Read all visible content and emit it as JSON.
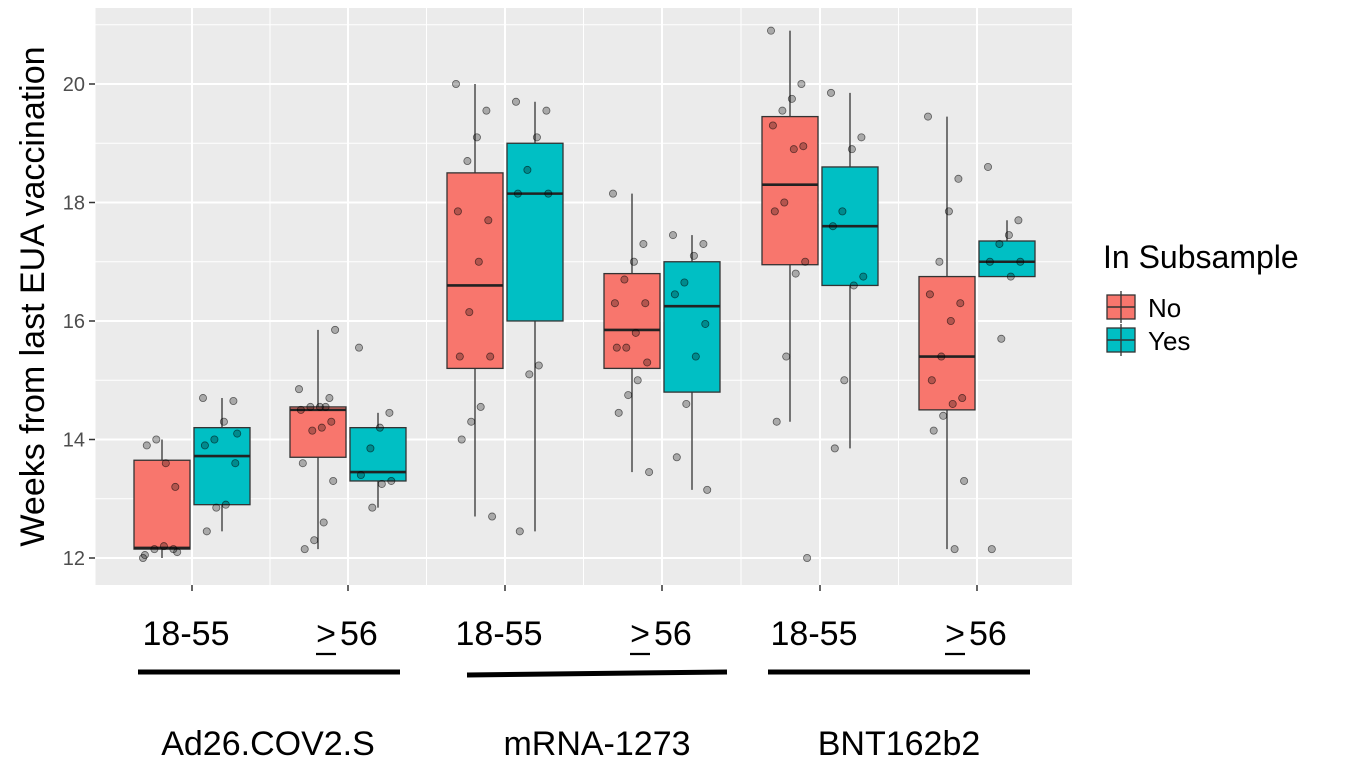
{
  "chart_data": {
    "type": "box",
    "ylabel": "Weeks from last EUA vaccination",
    "ylim": [
      11.6,
      21.0
    ],
    "yticks": [
      12,
      14,
      16,
      18,
      20
    ],
    "grid": true,
    "legend": {
      "title": "In Subsample",
      "placement": "right",
      "entries": [
        {
          "label": "No",
          "color": "#F8766D"
        },
        {
          "label": "Yes",
          "color": "#00BFC4"
        }
      ]
    },
    "vaccines": [
      "Ad26.COV2.S",
      "mRNA-1273",
      "BNT162b2"
    ],
    "age_groups": [
      "18-55",
      "56"
    ],
    "age_group_prefix": ">",
    "series": [
      {
        "name": "No",
        "color": "#F8766D",
        "boxes": [
          {
            "vaccine": "Ad26.COV2.S",
            "age": "18-55",
            "whisker_low": 12.0,
            "q1": 12.15,
            "median": 12.17,
            "q3": 13.65,
            "whisker_high": 14.0
          },
          {
            "vaccine": "Ad26.COV2.S",
            "age": "56",
            "whisker_low": 12.15,
            "q1": 13.7,
            "median": 14.5,
            "q3": 14.55,
            "whisker_high": 15.85
          },
          {
            "vaccine": "mRNA-1273",
            "age": "18-55",
            "whisker_low": 12.7,
            "q1": 15.2,
            "median": 16.6,
            "q3": 18.5,
            "whisker_high": 20.0
          },
          {
            "vaccine": "mRNA-1273",
            "age": "56",
            "whisker_low": 13.45,
            "q1": 15.2,
            "median": 15.85,
            "q3": 16.8,
            "whisker_high": 18.15
          },
          {
            "vaccine": "BNT162b2",
            "age": "18-55",
            "whisker_low": 14.3,
            "q1": 16.95,
            "median": 18.3,
            "q3": 19.45,
            "whisker_high": 20.9
          },
          {
            "vaccine": "BNT162b2",
            "age": "56",
            "whisker_low": 12.15,
            "q1": 14.5,
            "median": 15.4,
            "q3": 16.75,
            "whisker_high": 19.45
          }
        ]
      },
      {
        "name": "Yes",
        "color": "#00BFC4",
        "boxes": [
          {
            "vaccine": "Ad26.COV2.S",
            "age": "18-55",
            "whisker_low": 12.45,
            "q1": 12.9,
            "median": 13.72,
            "q3": 14.2,
            "whisker_high": 14.7
          },
          {
            "vaccine": "Ad26.COV2.S",
            "age": "56",
            "whisker_low": 12.85,
            "q1": 13.3,
            "median": 13.45,
            "q3": 14.2,
            "whisker_high": 14.45
          },
          {
            "vaccine": "mRNA-1273",
            "age": "18-55",
            "whisker_low": 12.45,
            "q1": 16.0,
            "median": 18.15,
            "q3": 19.0,
            "whisker_high": 19.7
          },
          {
            "vaccine": "mRNA-1273",
            "age": "56",
            "whisker_low": 13.15,
            "q1": 14.8,
            "median": 16.25,
            "q3": 17.0,
            "whisker_high": 17.45
          },
          {
            "vaccine": "BNT162b2",
            "age": "18-55",
            "whisker_low": 13.85,
            "q1": 16.6,
            "median": 17.6,
            "q3": 18.6,
            "whisker_high": 19.85
          },
          {
            "vaccine": "BNT162b2",
            "age": "56",
            "whisker_low": 16.75,
            "q1": 16.75,
            "median": 17.0,
            "q3": 17.35,
            "whisker_high": 17.7
          }
        ]
      }
    ],
    "points": [
      {
        "series": "No",
        "vaccine": "Ad26.COV2.S",
        "age": "18-55",
        "y": [
          12.0,
          12.15,
          12.2,
          12.15,
          12.05,
          13.2,
          13.6,
          14.0,
          13.9,
          12.1
        ]
      },
      {
        "series": "Yes",
        "vaccine": "Ad26.COV2.S",
        "age": "18-55",
        "y": [
          14.7,
          14.65,
          14.3,
          14.0,
          13.9,
          13.6,
          12.9,
          12.85,
          12.45,
          14.1
        ]
      },
      {
        "series": "No",
        "vaccine": "Ad26.COV2.S",
        "age": "56",
        "y": [
          14.85,
          14.7,
          14.55,
          14.55,
          14.5,
          14.3,
          14.2,
          14.15,
          13.6,
          13.3,
          12.6,
          12.3,
          12.15,
          15.85,
          14.55
        ]
      },
      {
        "series": "Yes",
        "vaccine": "Ad26.COV2.S",
        "age": "56",
        "y": [
          15.55,
          14.45,
          14.2,
          13.85,
          13.4,
          13.3,
          13.25,
          12.85
        ]
      },
      {
        "series": "No",
        "vaccine": "mRNA-1273",
        "age": "18-55",
        "y": [
          20.0,
          19.55,
          19.1,
          18.7,
          17.85,
          17.7,
          17.0,
          16.15,
          15.4,
          15.4,
          14.55,
          14.3,
          14.0,
          12.7
        ]
      },
      {
        "series": "Yes",
        "vaccine": "mRNA-1273",
        "age": "18-55",
        "y": [
          19.7,
          19.55,
          19.1,
          18.55,
          18.15,
          18.15,
          15.25,
          15.1,
          12.45
        ]
      },
      {
        "series": "No",
        "vaccine": "mRNA-1273",
        "age": "56",
        "y": [
          18.15,
          17.3,
          17.0,
          16.7,
          16.3,
          16.3,
          15.8,
          15.55,
          15.55,
          15.3,
          15.0,
          14.75,
          14.45,
          13.45
        ]
      },
      {
        "series": "Yes",
        "vaccine": "mRNA-1273",
        "age": "56",
        "y": [
          17.45,
          17.3,
          17.1,
          16.65,
          16.45,
          15.95,
          15.4,
          14.6,
          13.7,
          13.15
        ]
      },
      {
        "series": "No",
        "vaccine": "BNT162b2",
        "age": "18-55",
        "y": [
          20.9,
          20.0,
          19.75,
          19.55,
          19.3,
          18.95,
          18.9,
          18.0,
          17.85,
          17.0,
          16.8,
          15.4,
          14.3,
          12.0
        ]
      },
      {
        "series": "Yes",
        "vaccine": "BNT162b2",
        "age": "18-55",
        "y": [
          19.85,
          19.1,
          18.9,
          17.85,
          17.6,
          16.75,
          16.6,
          15.0,
          13.85
        ]
      },
      {
        "series": "No",
        "vaccine": "BNT162b2",
        "age": "56",
        "y": [
          19.45,
          18.4,
          17.85,
          17.0,
          16.45,
          16.3,
          16.0,
          15.4,
          15.0,
          14.7,
          14.6,
          14.4,
          14.15,
          13.3,
          12.15
        ]
      },
      {
        "series": "Yes",
        "vaccine": "BNT162b2",
        "age": "56",
        "y": [
          18.6,
          17.7,
          17.45,
          17.3,
          17.0,
          17.0,
          16.75,
          15.7,
          12.15
        ]
      }
    ]
  }
}
